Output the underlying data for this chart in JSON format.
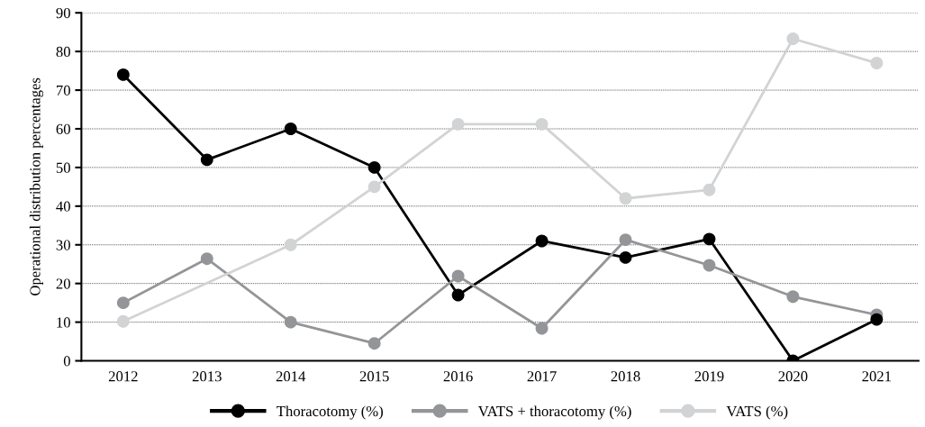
{
  "chart_data": {
    "type": "line",
    "ylabel": "Operational distribution percentages",
    "categories": [
      "2012",
      "2013",
      "2014",
      "2015",
      "2016",
      "2017",
      "2018",
      "2019",
      "2020",
      "2021"
    ],
    "ylim": [
      0,
      90
    ],
    "yticks": [
      0,
      10,
      20,
      30,
      40,
      50,
      60,
      70,
      80,
      90
    ],
    "grid": "y",
    "legend": "bottom",
    "marker": "circle",
    "line_style": "solid",
    "series": [
      {
        "name": "Thoracotomy (%)",
        "color": "#000000",
        "values": [
          74,
          52,
          60,
          50,
          17,
          31,
          26.7,
          31.5,
          0,
          10.7
        ]
      },
      {
        "name": "VATS + thoracotomy (%)",
        "color": "#939598",
        "values": [
          15,
          26.4,
          10,
          4.5,
          21.9,
          8.4,
          31.3,
          24.7,
          16.6,
          11.9
        ]
      },
      {
        "name": "VATS (%)",
        "color": "#d1d3d4",
        "values": [
          10.2,
          null,
          30,
          45,
          61.2,
          61.2,
          42,
          44.2,
          83.3,
          77
        ]
      }
    ]
  }
}
